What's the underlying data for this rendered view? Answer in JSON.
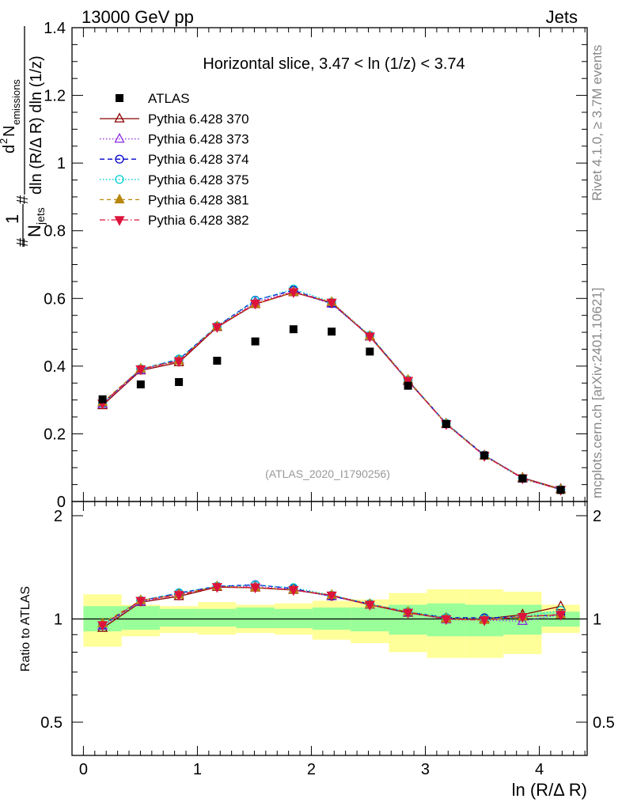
{
  "header": {
    "left_title": "13000 GeV pp",
    "right_title": "Jets"
  },
  "side_labels": {
    "rivet": "Rivet 4.1.0, ≥ 3.7M events",
    "mcplots": "mcplots.cern.ch [arXiv:2401.10621]"
  },
  "colors": {
    "data": "#000000",
    "band_inner": "#99ff99",
    "band_outer": "#ffff99",
    "ref_line": "#000000"
  },
  "chart_data": {
    "type": "line",
    "title": "Horizontal slice, 3.47 < ln (1/z) < 3.74",
    "analysis_tag": "(ATLAS_2020_I1790256)",
    "xlabel": "ln (R/Δ R)",
    "ylabel_main": "1/N_jets d²N_emissions / dln(R/ΔR) dln(1/z)",
    "ylabel_main_parts": {
      "hash1": "#",
      "one": "1",
      "njets": "N",
      "njets_sub": "jets",
      "hash2": "#",
      "d2": "d",
      "d2_sup": "2",
      "nem": "N",
      "nem_sub": "emissions",
      "den": "dln (R/Δ R) dln (1/z)"
    },
    "ylabel_ratio": "Ratio to ATLAS",
    "xlim": [
      -0.1,
      4.42
    ],
    "ylim_main": [
      0,
      1.4
    ],
    "ylim_ratio": [
      0.4,
      2.2
    ],
    "x_ticks": [
      "0",
      "1",
      "2",
      "3",
      "4"
    ],
    "y_ticks_main": [
      "0",
      "0.2",
      "0.4",
      "0.6",
      "0.8",
      "1",
      "1.2",
      "1.4"
    ],
    "y_ticks_ratio": [
      "0.5",
      "1",
      "2"
    ],
    "x": [
      0.168,
      0.503,
      0.838,
      1.173,
      1.508,
      1.843,
      2.178,
      2.513,
      2.848,
      3.183,
      3.518,
      3.853,
      4.188
    ],
    "bin_edges": [
      0.0,
      0.335,
      0.67,
      1.005,
      1.34,
      1.675,
      2.01,
      2.345,
      2.68,
      3.015,
      3.35,
      3.685,
      4.02,
      4.355
    ],
    "data": {
      "name": "ATLAS",
      "values": [
        0.302,
        0.346,
        0.353,
        0.416,
        0.473,
        0.509,
        0.502,
        0.443,
        0.342,
        0.229,
        0.136,
        0.068,
        0.034
      ],
      "band_inner": [
        [
          0.92,
          1.09
        ],
        [
          0.93,
          1.09
        ],
        [
          0.95,
          1.07
        ],
        [
          0.95,
          1.07
        ],
        [
          0.94,
          1.08
        ],
        [
          0.94,
          1.07
        ],
        [
          0.93,
          1.08
        ],
        [
          0.92,
          1.08
        ],
        [
          0.9,
          1.1
        ],
        [
          0.89,
          1.11
        ],
        [
          0.89,
          1.1
        ],
        [
          0.9,
          1.1
        ],
        [
          0.95,
          1.05
        ]
      ],
      "band_outer": [
        [
          0.83,
          1.18
        ],
        [
          0.89,
          1.1
        ],
        [
          0.91,
          1.09
        ],
        [
          0.9,
          1.12
        ],
        [
          0.91,
          1.1
        ],
        [
          0.9,
          1.11
        ],
        [
          0.87,
          1.13
        ],
        [
          0.85,
          1.14
        ],
        [
          0.8,
          1.19
        ],
        [
          0.77,
          1.22
        ],
        [
          0.77,
          1.22
        ],
        [
          0.79,
          1.2
        ],
        [
          0.91,
          1.1
        ]
      ]
    },
    "series": [
      {
        "name": "Pythia 6.428 370",
        "color": "#8b0000",
        "dash": "",
        "marker": "triangle-open",
        "values": [
          0.284,
          0.387,
          0.411,
          0.515,
          0.583,
          0.618,
          0.587,
          0.487,
          0.356,
          0.23,
          0.136,
          0.07,
          0.037
        ]
      },
      {
        "name": "Pythia 6.428 373",
        "color": "#8a2be2",
        "dash": "1.5 2.5",
        "marker": "triangle-open",
        "values": [
          0.288,
          0.388,
          0.418,
          0.517,
          0.59,
          0.62,
          0.584,
          0.488,
          0.357,
          0.228,
          0.135,
          0.067,
          0.035
        ]
      },
      {
        "name": "Pythia 6.428 374",
        "color": "#0000cd",
        "dash": "6 4",
        "marker": "circle-open",
        "values": [
          0.29,
          0.391,
          0.42,
          0.518,
          0.595,
          0.624,
          0.585,
          0.49,
          0.358,
          0.231,
          0.137,
          0.069,
          0.035
        ]
      },
      {
        "name": "Pythia 6.428 375",
        "color": "#00ced1",
        "dash": "1.5 2.5",
        "marker": "circle-open",
        "values": [
          0.291,
          0.392,
          0.421,
          0.518,
          0.594,
          0.628,
          0.589,
          0.491,
          0.359,
          0.231,
          0.136,
          0.069,
          0.036
        ]
      },
      {
        "name": "Pythia 6.428 381",
        "color": "#b8860b",
        "dash": "5 4",
        "marker": "triangle-filled",
        "values": [
          0.293,
          0.392,
          0.416,
          0.517,
          0.584,
          0.619,
          0.589,
          0.489,
          0.359,
          0.229,
          0.135,
          0.069,
          0.035
        ]
      },
      {
        "name": "Pythia 6.428 382",
        "color": "#dc143c",
        "dash": "7 3 1.5 3",
        "marker": "triangle-down-filled",
        "values": [
          0.29,
          0.391,
          0.415,
          0.516,
          0.585,
          0.619,
          0.588,
          0.488,
          0.357,
          0.229,
          0.135,
          0.069,
          0.035
        ]
      }
    ]
  }
}
